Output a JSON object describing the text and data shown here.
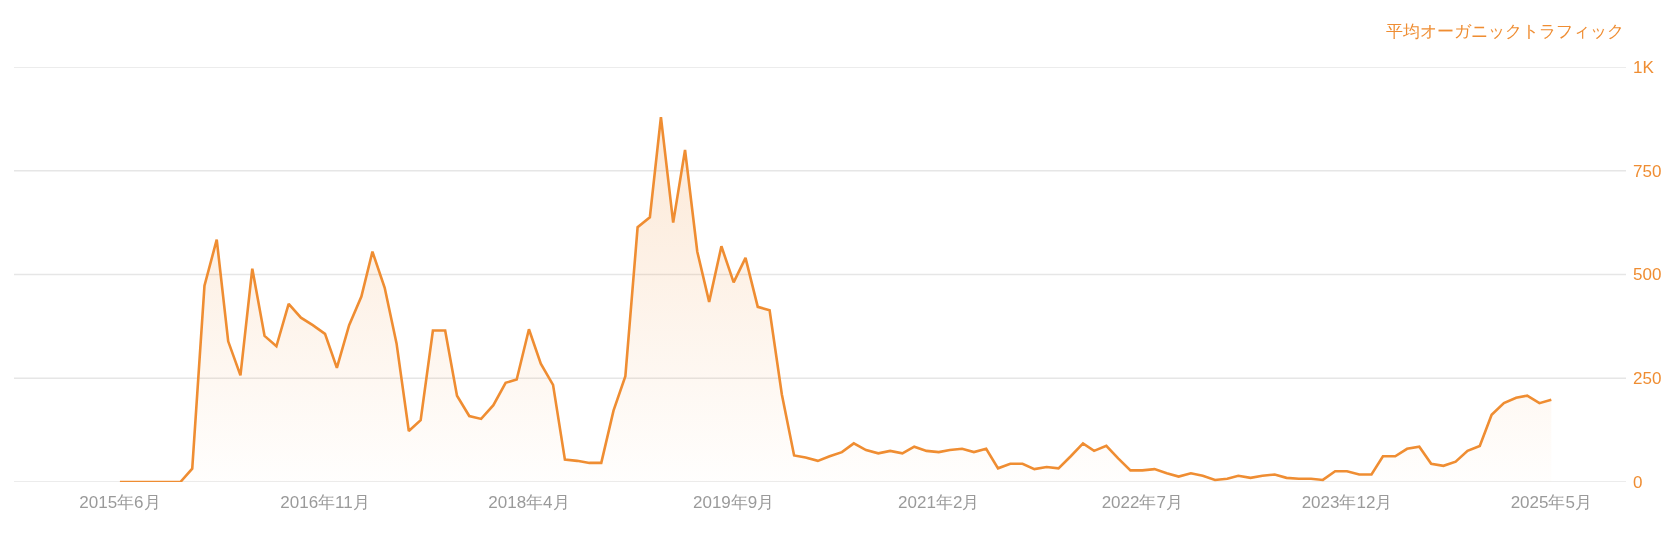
{
  "chart_data": {
    "type": "area",
    "ylabel": "平均オーガニックトラフィック",
    "x": [
      "2015-06",
      "2015-07",
      "2015-08",
      "2015-09",
      "2015-10",
      "2015-11",
      "2015-12",
      "2016-01",
      "2016-02",
      "2016-03",
      "2016-04",
      "2016-05",
      "2016-06",
      "2016-07",
      "2016-08",
      "2016-09",
      "2016-10",
      "2016-11",
      "2016-12",
      "2017-01",
      "2017-02",
      "2017-03",
      "2017-04",
      "2017-05",
      "2017-06",
      "2017-07",
      "2017-08",
      "2017-09",
      "2017-10",
      "2017-11",
      "2017-12",
      "2018-01",
      "2018-02",
      "2018-03",
      "2018-04",
      "2018-05",
      "2018-06",
      "2018-07",
      "2018-08",
      "2018-09",
      "2018-10",
      "2018-11",
      "2018-12",
      "2019-01",
      "2019-02",
      "2019-03",
      "2019-04",
      "2019-05",
      "2019-06",
      "2019-07",
      "2019-08",
      "2019-09",
      "2019-10",
      "2019-11",
      "2019-12",
      "2020-01",
      "2020-02",
      "2020-03",
      "2020-04",
      "2020-05",
      "2020-06",
      "2020-07",
      "2020-08",
      "2020-09",
      "2020-10",
      "2020-11",
      "2020-12",
      "2021-01",
      "2021-02",
      "2021-03",
      "2021-04",
      "2021-05",
      "2021-06",
      "2021-07",
      "2021-08",
      "2021-09",
      "2021-10",
      "2021-11",
      "2021-12",
      "2022-01",
      "2022-02",
      "2022-03",
      "2022-04",
      "2022-05",
      "2022-06",
      "2022-07",
      "2022-08",
      "2022-09",
      "2022-10",
      "2022-11",
      "2022-12",
      "2023-01",
      "2023-02",
      "2023-03",
      "2023-04",
      "2023-05",
      "2023-06",
      "2023-07",
      "2023-08",
      "2023-09",
      "2023-10",
      "2023-11",
      "2023-12",
      "2024-01",
      "2024-02",
      "2024-03",
      "2024-04",
      "2024-05",
      "2024-06",
      "2024-07",
      "2024-08",
      "2024-09",
      "2024-10",
      "2024-11",
      "2024-12",
      "2025-01",
      "2025-02",
      "2025-03",
      "2025-04",
      "2025-05"
    ],
    "series": [
      {
        "color": "#ef8d32",
        "values": [
          0,
          0,
          0,
          0,
          0,
          0,
          32,
          473,
          584,
          339,
          257,
          514,
          352,
          327,
          429,
          396,
          378,
          357,
          275,
          378,
          447,
          555,
          468,
          334,
          123,
          149,
          365,
          365,
          208,
          159,
          152,
          185,
          239,
          247,
          368,
          285,
          234,
          54,
          51,
          46,
          46,
          172,
          255,
          614,
          638,
          879,
          625,
          800,
          555,
          434,
          568,
          481,
          540,
          422,
          414,
          211,
          64,
          59,
          51,
          62,
          72,
          93,
          77,
          69,
          75,
          69,
          85,
          75,
          72,
          77,
          80,
          72,
          80,
          33,
          44,
          44,
          31,
          36,
          33,
          62,
          93,
          75,
          87,
          57,
          28,
          28,
          31,
          21,
          13,
          21,
          15,
          5,
          8,
          15,
          10,
          15,
          18,
          10,
          8,
          8,
          5,
          26,
          26,
          18,
          18,
          62,
          62,
          80,
          85,
          44,
          39,
          49,
          75,
          87,
          162,
          190,
          203,
          208,
          190,
          198
        ]
      }
    ],
    "xlim": [
      "2014-09-06",
      "2025-11-06"
    ],
    "xticks": [
      {
        "value": "2015-06",
        "label": "2015年6月"
      },
      {
        "value": "2016-11",
        "label": "2016年11月"
      },
      {
        "value": "2018-04",
        "label": "2018年4月"
      },
      {
        "value": "2019-09",
        "label": "2019年9月"
      },
      {
        "value": "2021-02",
        "label": "2021年2月"
      },
      {
        "value": "2022-07",
        "label": "2022年7月"
      },
      {
        "value": "2023-12",
        "label": "2023年12月"
      },
      {
        "value": "2025-05",
        "label": "2025年5月"
      }
    ],
    "ylim": [
      0,
      1000
    ],
    "yticks": [
      0,
      250,
      500,
      750,
      {
        "value": 1000,
        "label": "1K"
      }
    ],
    "grid": "y",
    "marker": "none",
    "line_style": "solid"
  }
}
